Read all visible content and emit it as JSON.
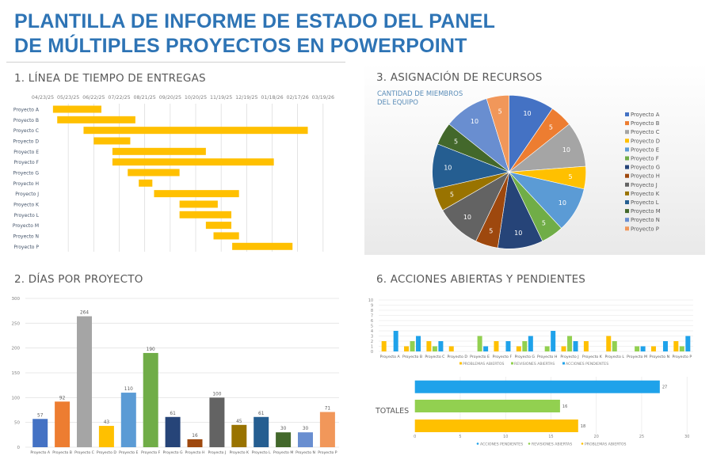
{
  "title": [
    "PLANTILLA DE INFORME DE ESTADO DEL PANEL",
    "DE MÚLTIPLES PROYECTOS EN POWERPOINT"
  ],
  "sections": {
    "timeline": "1. LÍNEA DE TIEMPO DE ENTREGAS",
    "days": "2. DÍAS POR PROYECTO",
    "resources": "3. ASIGNACIÓN DE RECURSOS",
    "actions": "6. ACCIONES ABIERTAS Y PENDIENTES"
  },
  "chart_data": [
    {
      "type": "gantt",
      "x_ticks": [
        "04/23/25",
        "05/23/25",
        "06/22/25",
        "07/22/25",
        "08/21/25",
        "09/20/25",
        "10/20/25",
        "11/19/25",
        "12/19/25",
        "01/18/26",
        "02/17/26",
        "03/19/26"
      ],
      "categories": [
        "Proyecto A",
        "Proyecto B",
        "Proyecto C",
        "Proyecto D",
        "Proyecto E",
        "Proyecto F",
        "Proyecto G",
        "Proyecto H",
        "Proyecto J",
        "Proyecto K",
        "Proyecto L",
        "Proyecto M",
        "Proyecto N",
        "Proyecto P"
      ],
      "start": [
        "2025-05-05",
        "2025-05-10",
        "2025-06-10",
        "2025-06-22",
        "2025-07-14",
        "2025-07-14",
        "2025-08-01",
        "2025-08-14",
        "2025-09-01",
        "2025-10-01",
        "2025-10-01",
        "2025-11-01",
        "2025-11-10",
        "2025-12-02"
      ],
      "duration_days": [
        57,
        92,
        264,
        43,
        110,
        190,
        61,
        16,
        100,
        45,
        61,
        30,
        30,
        71
      ],
      "color": "#ffc000"
    },
    {
      "type": "bar",
      "categories": [
        "Proyecto A",
        "Proyecto B",
        "Proyecto C",
        "Proyecto D",
        "Proyecto E",
        "Proyecto F",
        "Proyecto G",
        "Proyecto H",
        "Proyecto J",
        "Proyecto K",
        "Proyecto L",
        "Proyecto M",
        "Proyecto N",
        "Proyecto P"
      ],
      "values": [
        57,
        92,
        264,
        43,
        110,
        190,
        61,
        16,
        100,
        45,
        61,
        30,
        30,
        71
      ],
      "ylim": [
        0,
        300
      ],
      "y_ticks": [
        0,
        50,
        100,
        150,
        200,
        250,
        300
      ],
      "colors": [
        "#4472c4",
        "#ed7d31",
        "#a5a5a5",
        "#ffc000",
        "#5b9bd5",
        "#70ad47",
        "#264478",
        "#9e480e",
        "#636363",
        "#997300",
        "#255e91",
        "#43682b",
        "#698ed0",
        "#f1975a"
      ],
      "data_labels": true,
      "grid": true
    },
    {
      "type": "pie",
      "title": "CANTIDAD DE MIEMBROS DEL EQUIPO",
      "categories": [
        "Proyecto A",
        "Proyecto B",
        "Proyecto C",
        "Proyecto D",
        "Proyecto E",
        "Proyecto F",
        "Proyecto G",
        "Proyecto H",
        "Proyecto J",
        "Proyecto K",
        "Proyecto L",
        "Proyecto M",
        "Proyecto N",
        "Proyecto P"
      ],
      "values": [
        10,
        5,
        10,
        5,
        10,
        5,
        10,
        5,
        10,
        5,
        10,
        5,
        10,
        5
      ],
      "colors": [
        "#4472c4",
        "#ed7d31",
        "#a5a5a5",
        "#ffc000",
        "#5b9bd5",
        "#70ad47",
        "#264478",
        "#9e480e",
        "#636363",
        "#997300",
        "#255e91",
        "#43682b",
        "#698ed0",
        "#f1975a"
      ],
      "legend": "right"
    },
    {
      "type": "bar",
      "categories": [
        "Proyecto A",
        "Proyecto B",
        "Proyecto C",
        "Proyecto D",
        "Proyecto E",
        "Proyecto F",
        "Proyecto G",
        "Proyecto H",
        "Proyecto J",
        "Proyecto K",
        "Proyecto L",
        "Proyecto M",
        "Proyecto N",
        "Proyecto P"
      ],
      "series": [
        {
          "name": "PROBLEMAS ABIERTOS",
          "color": "#ffc000",
          "values": [
            2,
            1,
            2,
            1,
            0,
            2,
            1,
            0,
            1,
            2,
            3,
            0,
            1,
            2
          ]
        },
        {
          "name": "REVISIONES ABIERTAS",
          "color": "#92d050",
          "values": [
            0,
            2,
            1,
            0,
            3,
            0,
            2,
            1,
            3,
            0,
            2,
            1,
            0,
            1
          ]
        },
        {
          "name": "ACCIONES PENDIENTES",
          "color": "#1fa2ea",
          "values": [
            4,
            3,
            2,
            0,
            1,
            2,
            3,
            4,
            2,
            0,
            0,
            1,
            2,
            3
          ]
        }
      ],
      "ylim": [
        0,
        10
      ],
      "y_ticks": [
        0,
        1,
        2,
        3,
        4,
        5,
        6,
        7,
        8,
        9,
        10
      ],
      "legend": "bottom",
      "grid": true
    },
    {
      "type": "bar",
      "orientation": "horizontal",
      "category": "TOTALES",
      "series": [
        {
          "name": "ACCIONES PENDIENTES",
          "color": "#1fa2ea",
          "value": 27
        },
        {
          "name": "REVISIONES ABIERTAS",
          "color": "#92d050",
          "value": 16
        },
        {
          "name": "PROBLEMAS ABIERTOS",
          "color": "#ffc000",
          "value": 18
        }
      ],
      "xlim": [
        0,
        30
      ],
      "x_ticks": [
        0,
        5,
        10,
        15,
        20,
        25,
        30
      ],
      "legend": "bottom",
      "data_labels": true
    }
  ]
}
